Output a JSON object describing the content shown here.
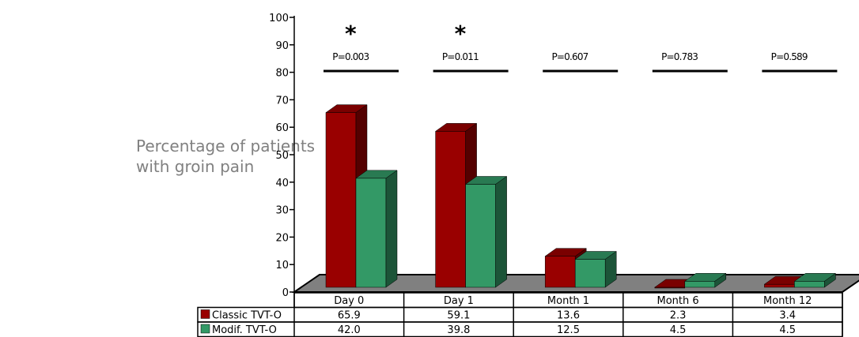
{
  "ylabel": "Percentage of patients\nwith groin pain",
  "chart_data": {
    "type": "bar",
    "categories": [
      "Day 0",
      "Day 1",
      "Month 1",
      "Month 6",
      "Month 12"
    ],
    "series": [
      {
        "name": "Classic TVT-O",
        "values": [
          65.9,
          59.1,
          13.6,
          2.3,
          3.4
        ],
        "color": "#990000",
        "table_values": [
          "65.9",
          "59.1",
          "13.6",
          "2.3",
          "3.4"
        ]
      },
      {
        "name": "Modif. TVT-O",
        "values": [
          42.0,
          39.8,
          12.5,
          4.5,
          4.5
        ],
        "color": "#339966",
        "table_values": [
          "42.0",
          "39.8",
          "12.5",
          "4.5",
          "4.5"
        ]
      }
    ],
    "ylim": [
      0,
      100
    ],
    "yticks": [
      "0",
      "10",
      "20",
      "30",
      "40",
      "50",
      "60",
      "70",
      "80",
      "90",
      "100"
    ],
    "p_values": [
      "P=0.003",
      "P=0.011",
      "P=0.607",
      "P=0.783",
      "P=0.589"
    ],
    "significance_marks": [
      "*",
      "*",
      "",
      "",
      ""
    ],
    "floor_color": "#808080",
    "style": "3d-bar-with-data-table"
  }
}
